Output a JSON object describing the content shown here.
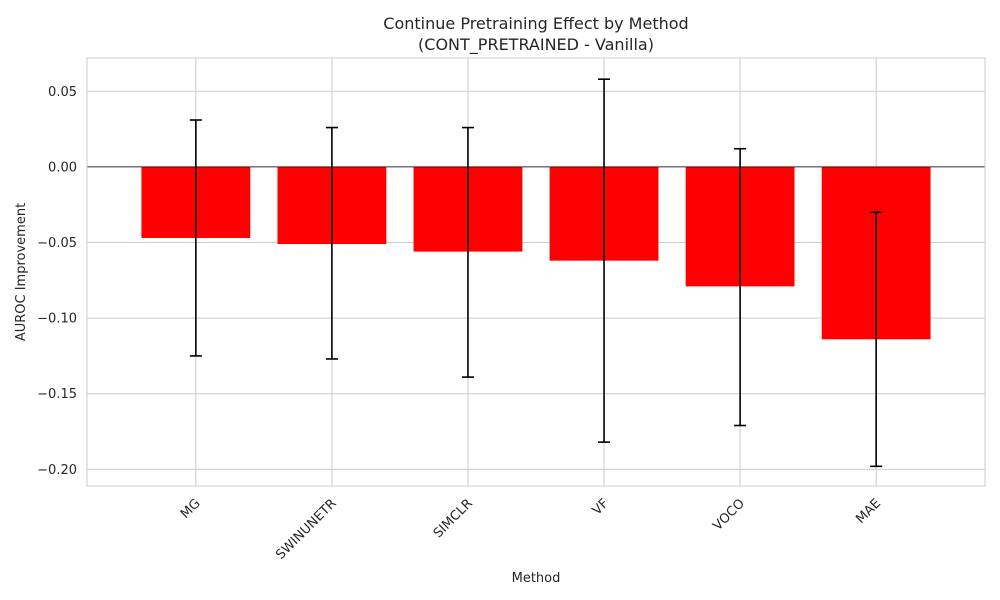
{
  "chart_data": {
    "type": "bar",
    "title": "Continue Pretraining Effect by Method",
    "subtitle": "(CONT_PRETRAINED - Vanilla)",
    "xlabel": "Method",
    "ylabel": "AUROC Improvement",
    "categories": [
      "MG",
      "SWINUNETR",
      "SIMCLR",
      "VF",
      "VOCO",
      "MAE"
    ],
    "values": [
      -0.047,
      -0.051,
      -0.056,
      -0.062,
      -0.079,
      -0.114
    ],
    "error_low": [
      -0.125,
      -0.127,
      -0.139,
      -0.182,
      -0.171,
      -0.198
    ],
    "error_high": [
      0.031,
      0.026,
      0.026,
      0.058,
      0.012,
      -0.03
    ],
    "ylim": [
      -0.211,
      0.072
    ],
    "yticks": [
      0.05,
      0.0,
      -0.05,
      -0.1,
      -0.15,
      -0.2
    ],
    "ytick_labels": [
      "0.05",
      "0.00",
      "−0.05",
      "−0.10",
      "−0.15",
      "−0.20"
    ],
    "grid": true,
    "zero_line": true,
    "bar_color": "#ff0000",
    "error_color": "#000000",
    "grid_color": "#cccccc"
  }
}
